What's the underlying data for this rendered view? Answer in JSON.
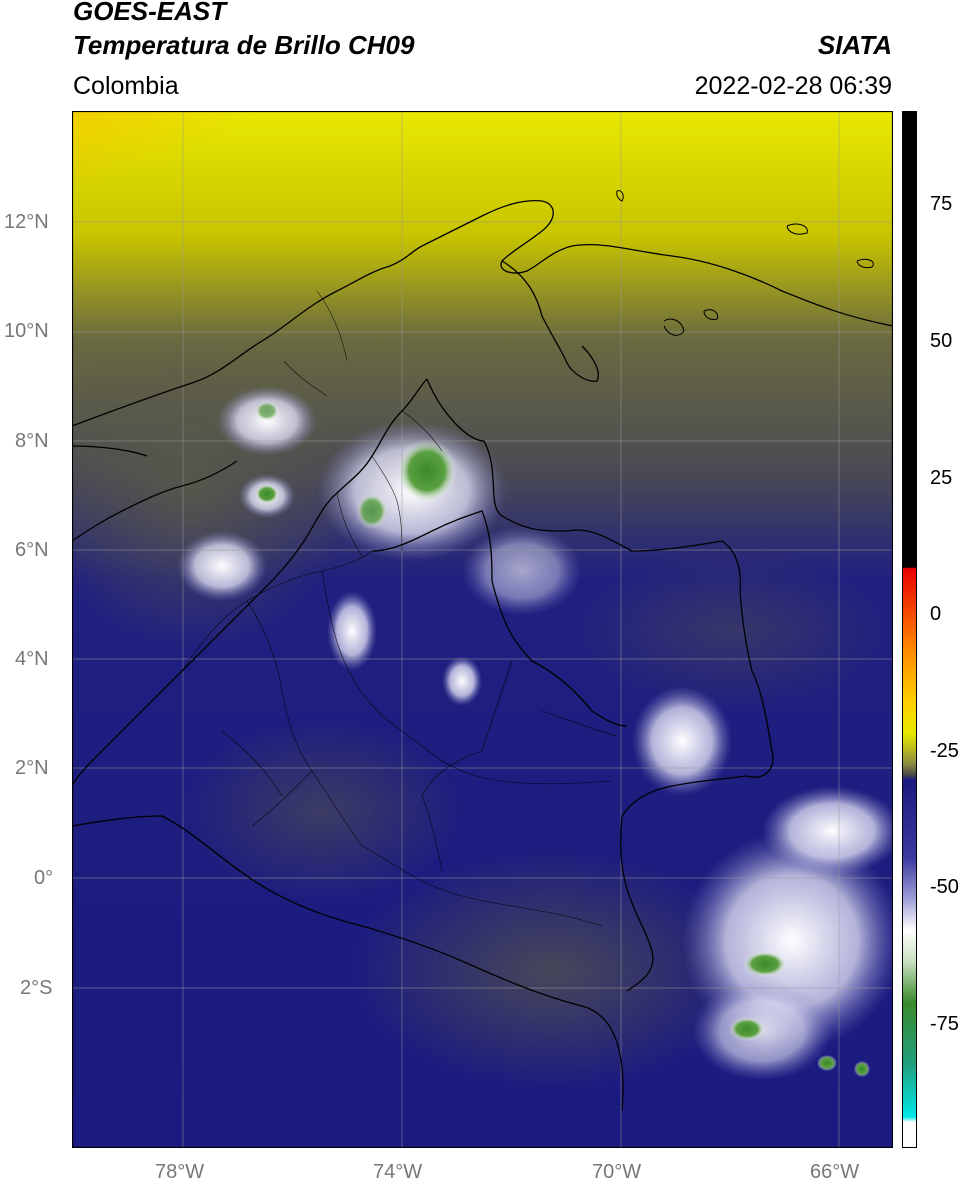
{
  "header": {
    "satellite": "GOES-EAST",
    "product": "Temperatura de Brillo CH09",
    "brand": "SIATA",
    "region": "Colombia",
    "timestamp": "2022-02-28 06:39"
  },
  "axes": {
    "lat_labels": [
      "12°N",
      "10°N",
      "8°N",
      "6°N",
      "4°N",
      "2°N",
      "0°",
      "2°S"
    ],
    "lon_labels": [
      "78°W",
      "74°W",
      "70°W",
      "66°W"
    ]
  },
  "colorbar": {
    "ticks": [
      "75",
      "50",
      "25",
      "0",
      "-25",
      "-50",
      "-75"
    ],
    "range": [
      -95,
      90
    ],
    "unit_note": ""
  },
  "colors": {
    "warm": "#ff8a00",
    "yellow": "#e8e800",
    "olive": "#5a5a3a",
    "navy": "#1a1a80",
    "white": "#ffffff",
    "green": "#3a8a2a",
    "cyan": "#00d8d8",
    "black": "#000000"
  }
}
